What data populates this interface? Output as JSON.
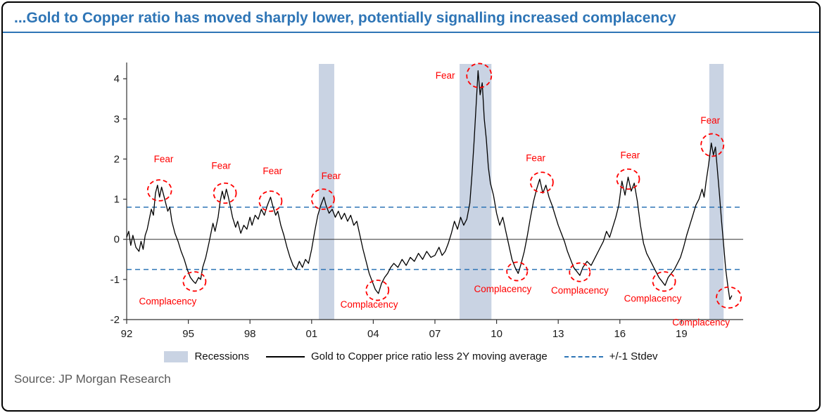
{
  "frame": {
    "title": "...Gold to Copper ratio has moved sharply lower, potentially signalling increased complacency",
    "source": "Source: JP Morgan Research"
  },
  "colors": {
    "title": "#2E75B6",
    "line": "#000000",
    "stdev": "#2E75B6",
    "recession": "#C9D3E3",
    "annotation": "#FF0000",
    "axis": "#333333",
    "source_text": "#595959"
  },
  "chart_data": {
    "type": "line",
    "title": "...Gold to Copper ratio has moved sharply lower, potentially signalling increased complacency",
    "xlabel": "",
    "ylabel": "",
    "x_range": [
      1992,
      2022
    ],
    "y_range": [
      -2,
      4.3
    ],
    "y_ticks": [
      4,
      3,
      2,
      1,
      0,
      -1,
      -2
    ],
    "x_ticks": [
      {
        "label": "92",
        "year": 1992
      },
      {
        "label": "95",
        "year": 1995
      },
      {
        "label": "98",
        "year": 1998
      },
      {
        "label": "01",
        "year": 2001
      },
      {
        "label": "04",
        "year": 2004
      },
      {
        "label": "07",
        "year": 2007
      },
      {
        "label": "10",
        "year": 2010
      },
      {
        "label": "13",
        "year": 2013
      },
      {
        "label": "16",
        "year": 2016
      },
      {
        "label": "19",
        "year": 2019
      }
    ],
    "stdev_lines": [
      0.8,
      -0.75
    ],
    "recessions": [
      [
        2001.35,
        2002.1
      ],
      [
        2008.2,
        2009.75
      ],
      [
        2020.35,
        2021.05
      ]
    ],
    "legend": [
      {
        "label": "Recessions"
      },
      {
        "label": "Gold to Copper price ratio less 2Y moving average"
      },
      {
        "label": "+/-1 Stdev"
      }
    ],
    "series": [
      {
        "name": "Gold to Copper price ratio less 2Y moving average",
        "points": [
          [
            1992.0,
            0.05
          ],
          [
            1992.1,
            0.2
          ],
          [
            1992.2,
            -0.15
          ],
          [
            1992.3,
            0.1
          ],
          [
            1992.45,
            -0.2
          ],
          [
            1992.6,
            -0.3
          ],
          [
            1992.7,
            -0.05
          ],
          [
            1992.8,
            -0.25
          ],
          [
            1992.9,
            0.1
          ],
          [
            1993.0,
            0.25
          ],
          [
            1993.1,
            0.5
          ],
          [
            1993.2,
            0.75
          ],
          [
            1993.3,
            0.6
          ],
          [
            1993.4,
            1.15
          ],
          [
            1993.5,
            1.35
          ],
          [
            1993.6,
            1.05
          ],
          [
            1993.7,
            1.3
          ],
          [
            1993.8,
            1.1
          ],
          [
            1993.9,
            0.9
          ],
          [
            1994.0,
            0.7
          ],
          [
            1994.1,
            0.8
          ],
          [
            1994.2,
            0.45
          ],
          [
            1994.35,
            0.15
          ],
          [
            1994.5,
            -0.05
          ],
          [
            1994.65,
            -0.3
          ],
          [
            1994.8,
            -0.5
          ],
          [
            1994.95,
            -0.75
          ],
          [
            1995.1,
            -0.95
          ],
          [
            1995.25,
            -1.05
          ],
          [
            1995.35,
            -1.1
          ],
          [
            1995.5,
            -0.95
          ],
          [
            1995.6,
            -1.0
          ],
          [
            1995.7,
            -0.7
          ],
          [
            1995.85,
            -0.45
          ],
          [
            1996.0,
            -0.1
          ],
          [
            1996.1,
            0.15
          ],
          [
            1996.2,
            0.4
          ],
          [
            1996.3,
            0.2
          ],
          [
            1996.45,
            0.55
          ],
          [
            1996.55,
            0.95
          ],
          [
            1996.65,
            1.2
          ],
          [
            1996.75,
            1.0
          ],
          [
            1996.85,
            1.25
          ],
          [
            1996.95,
            1.05
          ],
          [
            1997.05,
            0.8
          ],
          [
            1997.15,
            0.55
          ],
          [
            1997.3,
            0.3
          ],
          [
            1997.4,
            0.45
          ],
          [
            1997.55,
            0.15
          ],
          [
            1997.7,
            0.35
          ],
          [
            1997.85,
            0.25
          ],
          [
            1998.0,
            0.55
          ],
          [
            1998.1,
            0.35
          ],
          [
            1998.25,
            0.6
          ],
          [
            1998.4,
            0.5
          ],
          [
            1998.55,
            0.75
          ],
          [
            1998.7,
            0.6
          ],
          [
            1998.85,
            0.85
          ],
          [
            1999.0,
            1.05
          ],
          [
            1999.1,
            0.85
          ],
          [
            1999.25,
            0.6
          ],
          [
            1999.35,
            0.7
          ],
          [
            1999.5,
            0.35
          ],
          [
            1999.65,
            0.1
          ],
          [
            1999.8,
            -0.2
          ],
          [
            1999.95,
            -0.45
          ],
          [
            2000.1,
            -0.65
          ],
          [
            2000.25,
            -0.75
          ],
          [
            2000.4,
            -0.55
          ],
          [
            2000.55,
            -0.7
          ],
          [
            2000.7,
            -0.5
          ],
          [
            2000.85,
            -0.6
          ],
          [
            2001.0,
            -0.25
          ],
          [
            2001.15,
            0.2
          ],
          [
            2001.3,
            0.6
          ],
          [
            2001.45,
            0.85
          ],
          [
            2001.6,
            1.05
          ],
          [
            2001.7,
            0.85
          ],
          [
            2001.85,
            0.65
          ],
          [
            2002.0,
            0.75
          ],
          [
            2002.15,
            0.55
          ],
          [
            2002.3,
            0.7
          ],
          [
            2002.45,
            0.5
          ],
          [
            2002.6,
            0.65
          ],
          [
            2002.75,
            0.45
          ],
          [
            2002.9,
            0.6
          ],
          [
            2003.05,
            0.35
          ],
          [
            2003.2,
            0.45
          ],
          [
            2003.35,
            0.1
          ],
          [
            2003.5,
            -0.25
          ],
          [
            2003.65,
            -0.55
          ],
          [
            2003.8,
            -0.85
          ],
          [
            2003.95,
            -1.05
          ],
          [
            2004.1,
            -1.25
          ],
          [
            2004.25,
            -1.35
          ],
          [
            2004.4,
            -1.1
          ],
          [
            2004.55,
            -0.95
          ],
          [
            2004.7,
            -0.85
          ],
          [
            2004.85,
            -0.7
          ],
          [
            2005.0,
            -0.6
          ],
          [
            2005.2,
            -0.7
          ],
          [
            2005.4,
            -0.5
          ],
          [
            2005.6,
            -0.65
          ],
          [
            2005.8,
            -0.45
          ],
          [
            2006.0,
            -0.55
          ],
          [
            2006.2,
            -0.35
          ],
          [
            2006.4,
            -0.5
          ],
          [
            2006.6,
            -0.3
          ],
          [
            2006.8,
            -0.45
          ],
          [
            2007.0,
            -0.4
          ],
          [
            2007.2,
            -0.2
          ],
          [
            2007.35,
            -0.4
          ],
          [
            2007.5,
            -0.3
          ],
          [
            2007.65,
            -0.1
          ],
          [
            2007.8,
            0.15
          ],
          [
            2007.95,
            0.45
          ],
          [
            2008.1,
            0.25
          ],
          [
            2008.25,
            0.55
          ],
          [
            2008.4,
            0.35
          ],
          [
            2008.55,
            0.5
          ],
          [
            2008.7,
            0.9
          ],
          [
            2008.8,
            1.6
          ],
          [
            2008.9,
            2.4
          ],
          [
            2009.0,
            3.3
          ],
          [
            2009.1,
            4.2
          ],
          [
            2009.2,
            3.6
          ],
          [
            2009.3,
            3.9
          ],
          [
            2009.4,
            3.0
          ],
          [
            2009.5,
            2.5
          ],
          [
            2009.6,
            1.8
          ],
          [
            2009.7,
            1.4
          ],
          [
            2009.85,
            1.1
          ],
          [
            2010.0,
            0.65
          ],
          [
            2010.15,
            0.35
          ],
          [
            2010.3,
            0.55
          ],
          [
            2010.45,
            0.2
          ],
          [
            2010.6,
            -0.15
          ],
          [
            2010.75,
            -0.5
          ],
          [
            2010.9,
            -0.7
          ],
          [
            2011.05,
            -0.85
          ],
          [
            2011.2,
            -0.6
          ],
          [
            2011.35,
            -0.3
          ],
          [
            2011.5,
            0.1
          ],
          [
            2011.65,
            0.55
          ],
          [
            2011.8,
            0.95
          ],
          [
            2011.95,
            1.25
          ],
          [
            2012.1,
            1.5
          ],
          [
            2012.25,
            1.15
          ],
          [
            2012.4,
            1.35
          ],
          [
            2012.55,
            1.05
          ],
          [
            2012.7,
            0.85
          ],
          [
            2012.85,
            0.6
          ],
          [
            2013.0,
            0.35
          ],
          [
            2013.15,
            0.15
          ],
          [
            2013.3,
            -0.05
          ],
          [
            2013.45,
            -0.3
          ],
          [
            2013.6,
            -0.5
          ],
          [
            2013.75,
            -0.7
          ],
          [
            2013.9,
            -0.8
          ],
          [
            2014.05,
            -0.9
          ],
          [
            2014.2,
            -0.7
          ],
          [
            2014.4,
            -0.55
          ],
          [
            2014.6,
            -0.65
          ],
          [
            2014.8,
            -0.45
          ],
          [
            2015.0,
            -0.25
          ],
          [
            2015.2,
            -0.05
          ],
          [
            2015.35,
            0.2
          ],
          [
            2015.5,
            0.05
          ],
          [
            2015.65,
            0.3
          ],
          [
            2015.8,
            0.55
          ],
          [
            2015.95,
            0.85
          ],
          [
            2016.1,
            1.45
          ],
          [
            2016.25,
            1.1
          ],
          [
            2016.4,
            1.55
          ],
          [
            2016.55,
            1.2
          ],
          [
            2016.7,
            1.4
          ],
          [
            2016.85,
            0.95
          ],
          [
            2017.0,
            0.35
          ],
          [
            2017.15,
            -0.1
          ],
          [
            2017.3,
            -0.35
          ],
          [
            2017.5,
            -0.55
          ],
          [
            2017.7,
            -0.75
          ],
          [
            2017.9,
            -0.95
          ],
          [
            2018.05,
            -1.05
          ],
          [
            2018.2,
            -1.15
          ],
          [
            2018.35,
            -0.95
          ],
          [
            2018.5,
            -0.85
          ],
          [
            2018.65,
            -0.75
          ],
          [
            2018.8,
            -0.6
          ],
          [
            2018.95,
            -0.45
          ],
          [
            2019.1,
            -0.2
          ],
          [
            2019.25,
            0.1
          ],
          [
            2019.4,
            0.35
          ],
          [
            2019.55,
            0.6
          ],
          [
            2019.7,
            0.85
          ],
          [
            2019.85,
            1.0
          ],
          [
            2020.0,
            1.25
          ],
          [
            2020.1,
            1.05
          ],
          [
            2020.2,
            1.45
          ],
          [
            2020.3,
            1.8
          ],
          [
            2020.4,
            2.2
          ],
          [
            2020.45,
            2.4
          ],
          [
            2020.55,
            2.1
          ],
          [
            2020.65,
            2.3
          ],
          [
            2020.75,
            1.7
          ],
          [
            2020.85,
            1.1
          ],
          [
            2020.95,
            0.45
          ],
          [
            2021.05,
            -0.15
          ],
          [
            2021.15,
            -0.75
          ],
          [
            2021.25,
            -1.15
          ],
          [
            2021.35,
            -1.5
          ],
          [
            2021.45,
            -1.4
          ]
        ]
      }
    ],
    "annotations": [
      {
        "text": "Fear",
        "cx": 1993.6,
        "cy": 1.22,
        "rx": 0.58,
        "ry": 0.26,
        "lx": 1993.8,
        "ly": 1.92
      },
      {
        "text": "Fear",
        "cx": 1996.78,
        "cy": 1.15,
        "rx": 0.55,
        "ry": 0.25,
        "lx": 1996.6,
        "ly": 1.75
      },
      {
        "text": "Fear",
        "cx": 1999.0,
        "cy": 0.95,
        "rx": 0.55,
        "ry": 0.25,
        "lx": 1999.1,
        "ly": 1.62
      },
      {
        "text": "Fear",
        "cx": 2001.55,
        "cy": 1.0,
        "rx": 0.55,
        "ry": 0.25,
        "lx": 2001.95,
        "ly": 1.5
      },
      {
        "text": "Fear",
        "cx": 2009.15,
        "cy": 4.08,
        "rx": 0.6,
        "ry": 0.3,
        "lx": 2007.5,
        "ly": 4.0
      },
      {
        "text": "Fear",
        "cx": 2012.2,
        "cy": 1.42,
        "rx": 0.55,
        "ry": 0.25,
        "lx": 2011.9,
        "ly": 1.95
      },
      {
        "text": "Fear",
        "cx": 2016.4,
        "cy": 1.5,
        "rx": 0.55,
        "ry": 0.25,
        "lx": 2016.5,
        "ly": 2.02
      },
      {
        "text": "Fear",
        "cx": 2020.5,
        "cy": 2.35,
        "rx": 0.55,
        "ry": 0.28,
        "lx": 2020.4,
        "ly": 2.88
      },
      {
        "text": "Complacency",
        "cx": 1995.3,
        "cy": -1.05,
        "rx": 0.55,
        "ry": 0.24,
        "lx": 1994.0,
        "ly": -1.62
      },
      {
        "text": "Complacency",
        "cx": 2004.2,
        "cy": -1.27,
        "rx": 0.55,
        "ry": 0.25,
        "lx": 2003.8,
        "ly": -1.7
      },
      {
        "text": "Complacency",
        "cx": 2011.0,
        "cy": -0.8,
        "rx": 0.5,
        "ry": 0.23,
        "lx": 2010.3,
        "ly": -1.32
      },
      {
        "text": "Complacency",
        "cx": 2014.05,
        "cy": -0.82,
        "rx": 0.5,
        "ry": 0.23,
        "lx": 2014.05,
        "ly": -1.35
      },
      {
        "text": "Complacency",
        "cx": 2018.15,
        "cy": -1.05,
        "rx": 0.55,
        "ry": 0.24,
        "lx": 2017.6,
        "ly": -1.55
      },
      {
        "text": "Complacency",
        "cx": 2021.3,
        "cy": -1.45,
        "rx": 0.6,
        "ry": 0.26,
        "lx": 2019.95,
        "ly": -2.15
      }
    ]
  }
}
